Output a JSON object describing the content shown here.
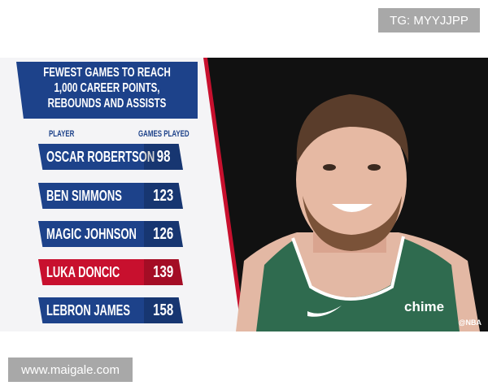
{
  "watermarks": {
    "top": "TG: MYYJJPP",
    "bottom": "www.maigale.com"
  },
  "graphic": {
    "title_lines": [
      "FEWEST GAMES TO REACH",
      "1,000 CAREER POINTS,",
      "REBOUNDS AND ASSISTS"
    ],
    "columns": {
      "player": "PLAYER",
      "games": "GAMES PLAYED"
    },
    "rows": [
      {
        "player": "OSCAR ROBERTSON",
        "games": "98",
        "highlight": false
      },
      {
        "player": "BEN SIMMONS",
        "games": "123",
        "highlight": false
      },
      {
        "player": "MAGIC JOHNSON",
        "games": "126",
        "highlight": false
      },
      {
        "player": "LUKA DONCIC",
        "games": "139",
        "highlight": true
      },
      {
        "player": "LEBRON JAMES",
        "games": "158",
        "highlight": false
      }
    ],
    "jersey_text": "chime",
    "credit": "@NBA",
    "colors": {
      "blue": "#1d428a",
      "red": "#c8102e",
      "jersey": "#2f6b4f"
    }
  }
}
